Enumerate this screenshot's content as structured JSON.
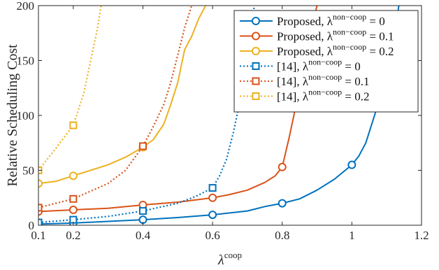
{
  "chart_data": {
    "type": "line",
    "title": "",
    "ylabel": "Relative Scheduling Cost",
    "xlabel_base": "λ",
    "xlabel_sup": "coop",
    "xlim": [
      0.1,
      1.2
    ],
    "ylim": [
      0,
      200
    ],
    "xticks": [
      "0.1",
      "0.2",
      "0.4",
      "0.6",
      "0.8",
      "1",
      "1.2"
    ],
    "xtick_values": [
      0.1,
      0.2,
      0.4,
      0.6,
      0.8,
      1.0,
      1.2
    ],
    "yticks": [
      "0",
      "50",
      "100",
      "150",
      "200"
    ],
    "ytick_values": [
      0,
      50,
      100,
      150,
      200
    ],
    "grid": false,
    "legend_position": "top-right",
    "series": [
      {
        "name": "Proposed, λ^non−coop = 0",
        "label_prefix": "Proposed, λ",
        "label_sup": "non−coop",
        "label_suffix": " = 0",
        "color": "#0072BD",
        "style": "solid",
        "marker": "circle",
        "x": [
          0.1,
          0.2,
          0.3,
          0.4,
          0.5,
          0.6,
          0.7,
          0.75,
          0.8,
          0.85,
          0.9,
          0.95,
          1.0,
          1.02,
          1.04,
          1.06,
          1.08,
          1.1,
          1.12,
          1.135
        ],
        "y": [
          1,
          2,
          3.5,
          5,
          7,
          9.5,
          13,
          17,
          20,
          24,
          32,
          42,
          55,
          63,
          75,
          95,
          115,
          140,
          170,
          200
        ],
        "marker_x": [
          0.1,
          0.2,
          0.4,
          0.6,
          0.8,
          1.0
        ],
        "marker_y": [
          1,
          2,
          5,
          9.5,
          20,
          55
        ]
      },
      {
        "name": "Proposed, λ^non−coop = 0.1",
        "label_prefix": "Proposed, λ",
        "label_sup": "non−coop",
        "label_suffix": " = 0.1",
        "color": "#D95319",
        "style": "solid",
        "marker": "circle",
        "x": [
          0.1,
          0.2,
          0.3,
          0.4,
          0.5,
          0.6,
          0.65,
          0.7,
          0.75,
          0.78,
          0.8,
          0.82,
          0.84,
          0.86,
          0.88,
          0.9
        ],
        "y": [
          12.5,
          14,
          15.5,
          18.5,
          21,
          25,
          28,
          32,
          39,
          45,
          53,
          80,
          110,
          145,
          175,
          200
        ],
        "marker_x": [
          0.1,
          0.2,
          0.4,
          0.6,
          0.8
        ],
        "marker_y": [
          12.5,
          14,
          18.5,
          25,
          53
        ]
      },
      {
        "name": "Proposed, λ^non−coop = 0.2",
        "label_prefix": "Proposed, λ",
        "label_sup": "non−coop",
        "label_suffix": " = 0.2",
        "color": "#EDB120",
        "style": "solid",
        "marker": "circle",
        "x": [
          0.1,
          0.15,
          0.2,
          0.25,
          0.3,
          0.35,
          0.4,
          0.43,
          0.46,
          0.48,
          0.5,
          0.52,
          0.54,
          0.56,
          0.58
        ],
        "y": [
          38,
          40,
          45,
          50,
          55,
          62,
          71,
          78,
          92,
          110,
          130,
          160,
          172,
          188,
          200
        ],
        "marker_x": [
          0.1,
          0.2,
          0.4
        ],
        "marker_y": [
          38,
          45,
          71
        ]
      },
      {
        "name": "[14], λ^non−coop = 0",
        "label_prefix": "[14], λ",
        "label_sup": "non−coop",
        "label_suffix": " = 0",
        "color": "#0072BD",
        "style": "dotted",
        "marker": "square",
        "x": [
          0.1,
          0.2,
          0.3,
          0.4,
          0.5,
          0.55,
          0.6,
          0.62,
          0.64,
          0.66,
          0.68,
          0.7,
          0.72
        ],
        "y": [
          2.5,
          5,
          8,
          13,
          20,
          26,
          34,
          45,
          60,
          85,
          115,
          160,
          200
        ],
        "marker_x": [
          0.1,
          0.2,
          0.4,
          0.6
        ],
        "marker_y": [
          2.5,
          5,
          13,
          34
        ]
      },
      {
        "name": "[14], λ^non−coop = 0.1",
        "label_prefix": "[14], λ",
        "label_sup": "non−coop",
        "label_suffix": " = 0.1",
        "color": "#D95319",
        "style": "dotted",
        "marker": "square",
        "x": [
          0.1,
          0.2,
          0.3,
          0.35,
          0.4,
          0.43,
          0.46,
          0.48,
          0.5,
          0.52,
          0.54
        ],
        "y": [
          16,
          24,
          38,
          50,
          72,
          90,
          110,
          130,
          155,
          180,
          200
        ],
        "marker_x": [
          0.1,
          0.2,
          0.4
        ],
        "marker_y": [
          16,
          24,
          72
        ]
      },
      {
        "name": "[14], λ^non−coop = 0.2",
        "label_prefix": "[14], λ",
        "label_sup": "non−coop",
        "label_suffix": " = 0.2",
        "color": "#EDB120",
        "style": "dotted",
        "marker": "square",
        "x": [
          0.1,
          0.15,
          0.2,
          0.23,
          0.25,
          0.27,
          0.28
        ],
        "y": [
          50,
          70,
          91,
          120,
          150,
          180,
          200
        ],
        "marker_x": [
          0.1,
          0.2
        ],
        "marker_y": [
          50,
          91
        ]
      }
    ]
  }
}
